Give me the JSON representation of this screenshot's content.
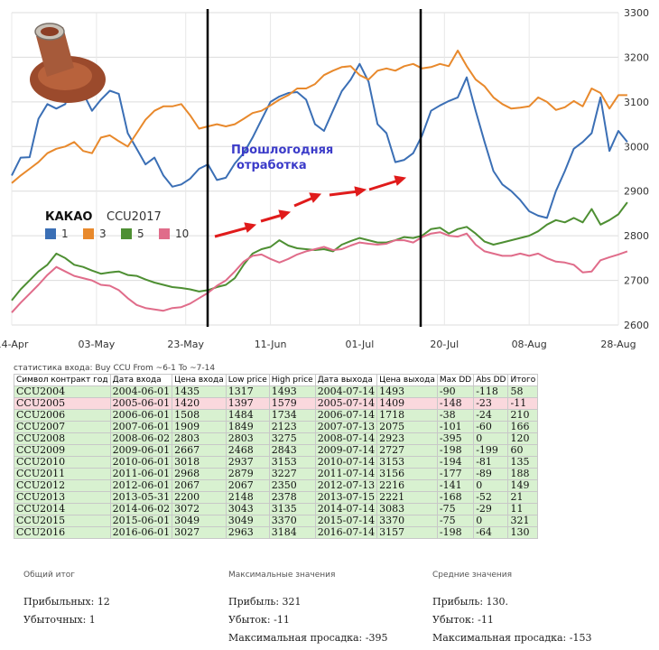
{
  "chart_data": {
    "type": "line",
    "title": "КАКАО",
    "subtitle": "CCU2017",
    "x_ticks": [
      "14-Apr",
      "03-May",
      "23-May",
      "11-Jun",
      "01-Jul",
      "20-Jul",
      "08-Aug",
      "28-Aug"
    ],
    "ylim": [
      2600,
      3300
    ],
    "y_ticks": [
      2600,
      2700,
      2800,
      2900,
      3000,
      3100,
      3200,
      3300
    ],
    "grid": true,
    "legend_position": "left",
    "annotation": "Прошлогодняя отработка",
    "vertical_markers": [
      "26-May",
      "01-Jun",
      "14-Jul"
    ],
    "series": [
      {
        "name": "1",
        "color": "#3b6fb5",
        "x_days": [
          0,
          2,
          4,
          6,
          8,
          10,
          12,
          14,
          16,
          18,
          20,
          22,
          24,
          26,
          28,
          30,
          32,
          34,
          36,
          38,
          40,
          42,
          44,
          46,
          48,
          50,
          52,
          54,
          56,
          58,
          60,
          62,
          64,
          66,
          68,
          70,
          72,
          74,
          76,
          78,
          80,
          82,
          84,
          86,
          88,
          90,
          92,
          94,
          96,
          98,
          100,
          102,
          104,
          106,
          108,
          110,
          112,
          114,
          116,
          118,
          120,
          122,
          124,
          126,
          128,
          130,
          132,
          134,
          136,
          138
        ],
        "values": [
          2935,
          2975,
          2976,
          3062,
          3095,
          3085,
          3095,
          3160,
          3120,
          3080,
          3105,
          3125,
          3118,
          3030,
          2995,
          2960,
          2975,
          2935,
          2910,
          2915,
          2928,
          2950,
          2960,
          2925,
          2930,
          2962,
          2985,
          3020,
          3060,
          3100,
          3112,
          3120,
          3122,
          3105,
          3050,
          3035,
          3080,
          3124,
          3150,
          3185,
          3145,
          3050,
          3030,
          2965,
          2970,
          2985,
          3025,
          3080,
          3092,
          3102,
          3110,
          3155,
          3080,
          3010,
          2945,
          2915,
          2900,
          2880,
          2855,
          2845,
          2840,
          2900,
          2945,
          2995,
          3010,
          3030,
          3110,
          2990,
          3035,
          3010
        ]
      },
      {
        "name": "3",
        "color": "#e8892c",
        "x_days": [
          0,
          2,
          4,
          6,
          8,
          10,
          12,
          14,
          16,
          18,
          20,
          22,
          24,
          26,
          28,
          30,
          32,
          34,
          36,
          38,
          40,
          42,
          44,
          46,
          48,
          50,
          52,
          54,
          56,
          58,
          60,
          62,
          64,
          66,
          68,
          70,
          72,
          74,
          76,
          78,
          80,
          82,
          84,
          86,
          88,
          90,
          92,
          94,
          96,
          98,
          100,
          102,
          104,
          106,
          108,
          110,
          112,
          114,
          116,
          118,
          120,
          122,
          124,
          126,
          128,
          130,
          132,
          134,
          136,
          138
        ],
        "values": [
          2918,
          2935,
          2950,
          2965,
          2985,
          2995,
          3000,
          3010,
          2990,
          2985,
          3020,
          3025,
          3012,
          3000,
          3030,
          3060,
          3080,
          3090,
          3090,
          3095,
          3070,
          3040,
          3045,
          3050,
          3045,
          3050,
          3062,
          3075,
          3080,
          3092,
          3105,
          3115,
          3130,
          3130,
          3140,
          3160,
          3170,
          3178,
          3180,
          3160,
          3150,
          3170,
          3175,
          3170,
          3180,
          3185,
          3175,
          3178,
          3185,
          3180,
          3215,
          3180,
          3150,
          3135,
          3110,
          3095,
          3085,
          3087,
          3090,
          3110,
          3100,
          3082,
          3088,
          3102,
          3090,
          3130,
          3120,
          3085,
          3115,
          3115
        ]
      },
      {
        "name": "5",
        "color": "#4e8f33",
        "x_days": [
          0,
          2,
          4,
          6,
          8,
          10,
          12,
          14,
          16,
          18,
          20,
          22,
          24,
          26,
          28,
          30,
          32,
          34,
          36,
          38,
          40,
          42,
          44,
          46,
          48,
          50,
          52,
          54,
          56,
          58,
          60,
          62,
          64,
          66,
          68,
          70,
          72,
          74,
          76,
          78,
          80,
          82,
          84,
          86,
          88,
          90,
          92,
          94,
          96,
          98,
          100,
          102,
          104,
          106,
          108,
          110,
          112,
          114,
          116,
          118,
          120,
          122,
          124,
          126,
          128,
          130,
          132,
          134,
          136,
          138
        ],
        "values": [
          2655,
          2680,
          2700,
          2720,
          2735,
          2760,
          2750,
          2735,
          2730,
          2722,
          2715,
          2718,
          2720,
          2712,
          2710,
          2702,
          2695,
          2690,
          2685,
          2683,
          2680,
          2675,
          2678,
          2685,
          2690,
          2705,
          2735,
          2760,
          2770,
          2775,
          2790,
          2778,
          2772,
          2770,
          2768,
          2770,
          2765,
          2780,
          2788,
          2795,
          2790,
          2785,
          2785,
          2790,
          2797,
          2795,
          2800,
          2815,
          2818,
          2805,
          2815,
          2820,
          2805,
          2787,
          2780,
          2785,
          2790,
          2795,
          2800,
          2810,
          2825,
          2835,
          2830,
          2840,
          2830,
          2860,
          2825,
          2835,
          2848,
          2875
        ]
      },
      {
        "name": "10",
        "color": "#e06c8a",
        "x_days": [
          0,
          2,
          4,
          6,
          8,
          10,
          12,
          14,
          16,
          18,
          20,
          22,
          24,
          26,
          28,
          30,
          32,
          34,
          36,
          38,
          40,
          42,
          44,
          46,
          48,
          50,
          52,
          54,
          56,
          58,
          60,
          62,
          64,
          66,
          68,
          70,
          72,
          74,
          76,
          78,
          80,
          82,
          84,
          86,
          88,
          90,
          92,
          94,
          96,
          98,
          100,
          102,
          104,
          106,
          108,
          110,
          112,
          114,
          116,
          118,
          120,
          122,
          124,
          126,
          128,
          130,
          132,
          134,
          136,
          138
        ],
        "values": [
          2628,
          2650,
          2670,
          2690,
          2712,
          2730,
          2720,
          2710,
          2705,
          2700,
          2690,
          2688,
          2678,
          2660,
          2645,
          2638,
          2635,
          2632,
          2638,
          2640,
          2648,
          2660,
          2672,
          2688,
          2700,
          2720,
          2742,
          2755,
          2758,
          2748,
          2740,
          2748,
          2758,
          2765,
          2770,
          2775,
          2768,
          2770,
          2778,
          2785,
          2782,
          2780,
          2782,
          2790,
          2790,
          2785,
          2797,
          2805,
          2808,
          2800,
          2798,
          2805,
          2780,
          2765,
          2760,
          2755,
          2755,
          2760,
          2755,
          2760,
          2750,
          2742,
          2740,
          2735,
          2718,
          2720,
          2745,
          2752,
          2758,
          2765
        ]
      }
    ]
  },
  "stats": {
    "caption": "статистика входа: Buy CCU From ~6-1 To ~7-14",
    "headers": [
      "Символ контракт год",
      "Дата входа",
      "Цена входа",
      "Low price",
      "High price",
      "Дата выхода",
      "Цена выхода",
      "Max DD",
      "Abs DD",
      "Итого"
    ],
    "rows": [
      [
        "CCU2004",
        "2004-06-01",
        "1435",
        "1317",
        "1493",
        "2004-07-14",
        "1493",
        "-90",
        "-118",
        "58"
      ],
      [
        "CCU2005",
        "2005-06-01",
        "1420",
        "1397",
        "1579",
        "2005-07-14",
        "1409",
        "-148",
        "-23",
        "-11"
      ],
      [
        "CCU2006",
        "2006-06-01",
        "1508",
        "1484",
        "1734",
        "2006-07-14",
        "1718",
        "-38",
        "-24",
        "210"
      ],
      [
        "CCU2007",
        "2007-06-01",
        "1909",
        "1849",
        "2123",
        "2007-07-13",
        "2075",
        "-101",
        "-60",
        "166"
      ],
      [
        "CCU2008",
        "2008-06-02",
        "2803",
        "2803",
        "3275",
        "2008-07-14",
        "2923",
        "-395",
        "0",
        "120"
      ],
      [
        "CCU2009",
        "2009-06-01",
        "2667",
        "2468",
        "2843",
        "2009-07-14",
        "2727",
        "-198",
        "-199",
        "60"
      ],
      [
        "CCU2010",
        "2010-06-01",
        "3018",
        "2937",
        "3153",
        "2010-07-14",
        "3153",
        "-194",
        "-81",
        "135"
      ],
      [
        "CCU2011",
        "2011-06-01",
        "2968",
        "2879",
        "3227",
        "2011-07-14",
        "3156",
        "-177",
        "-89",
        "188"
      ],
      [
        "CCU2012",
        "2012-06-01",
        "2067",
        "2067",
        "2350",
        "2012-07-13",
        "2216",
        "-141",
        "0",
        "149"
      ],
      [
        "CCU2013",
        "2013-05-31",
        "2200",
        "2148",
        "2378",
        "2013-07-15",
        "2221",
        "-168",
        "-52",
        "21"
      ],
      [
        "CCU2014",
        "2014-06-02",
        "3072",
        "3043",
        "3135",
        "2014-07-14",
        "3083",
        "-75",
        "-29",
        "11"
      ],
      [
        "CCU2015",
        "2015-06-01",
        "3049",
        "3049",
        "3370",
        "2015-07-14",
        "3370",
        "-75",
        "0",
        "321"
      ],
      [
        "CCU2016",
        "2016-06-01",
        "3027",
        "2963",
        "3184",
        "2016-07-14",
        "3157",
        "-198",
        "-64",
        "130"
      ]
    ]
  },
  "summary": {
    "total": {
      "heading": "Общий итог",
      "lines": [
        "Прибыльных: 12",
        "Убыточных: 1"
      ]
    },
    "max": {
      "heading": "Максимальные значения",
      "lines": [
        "Прибыль: 321",
        "Убыток: -11",
        "Максимальная просадка: -395"
      ]
    },
    "avg": {
      "heading": "Средние значения",
      "lines": [
        "Прибыль: 130.",
        "Убыток: -11",
        "Максимальная просадка: -153"
      ]
    }
  },
  "colors": {
    "positive_row": "#d8f1d0",
    "negative_row": "#fad8dd",
    "arrow": "#e01b1b",
    "annotation": "#3b3bc9"
  }
}
